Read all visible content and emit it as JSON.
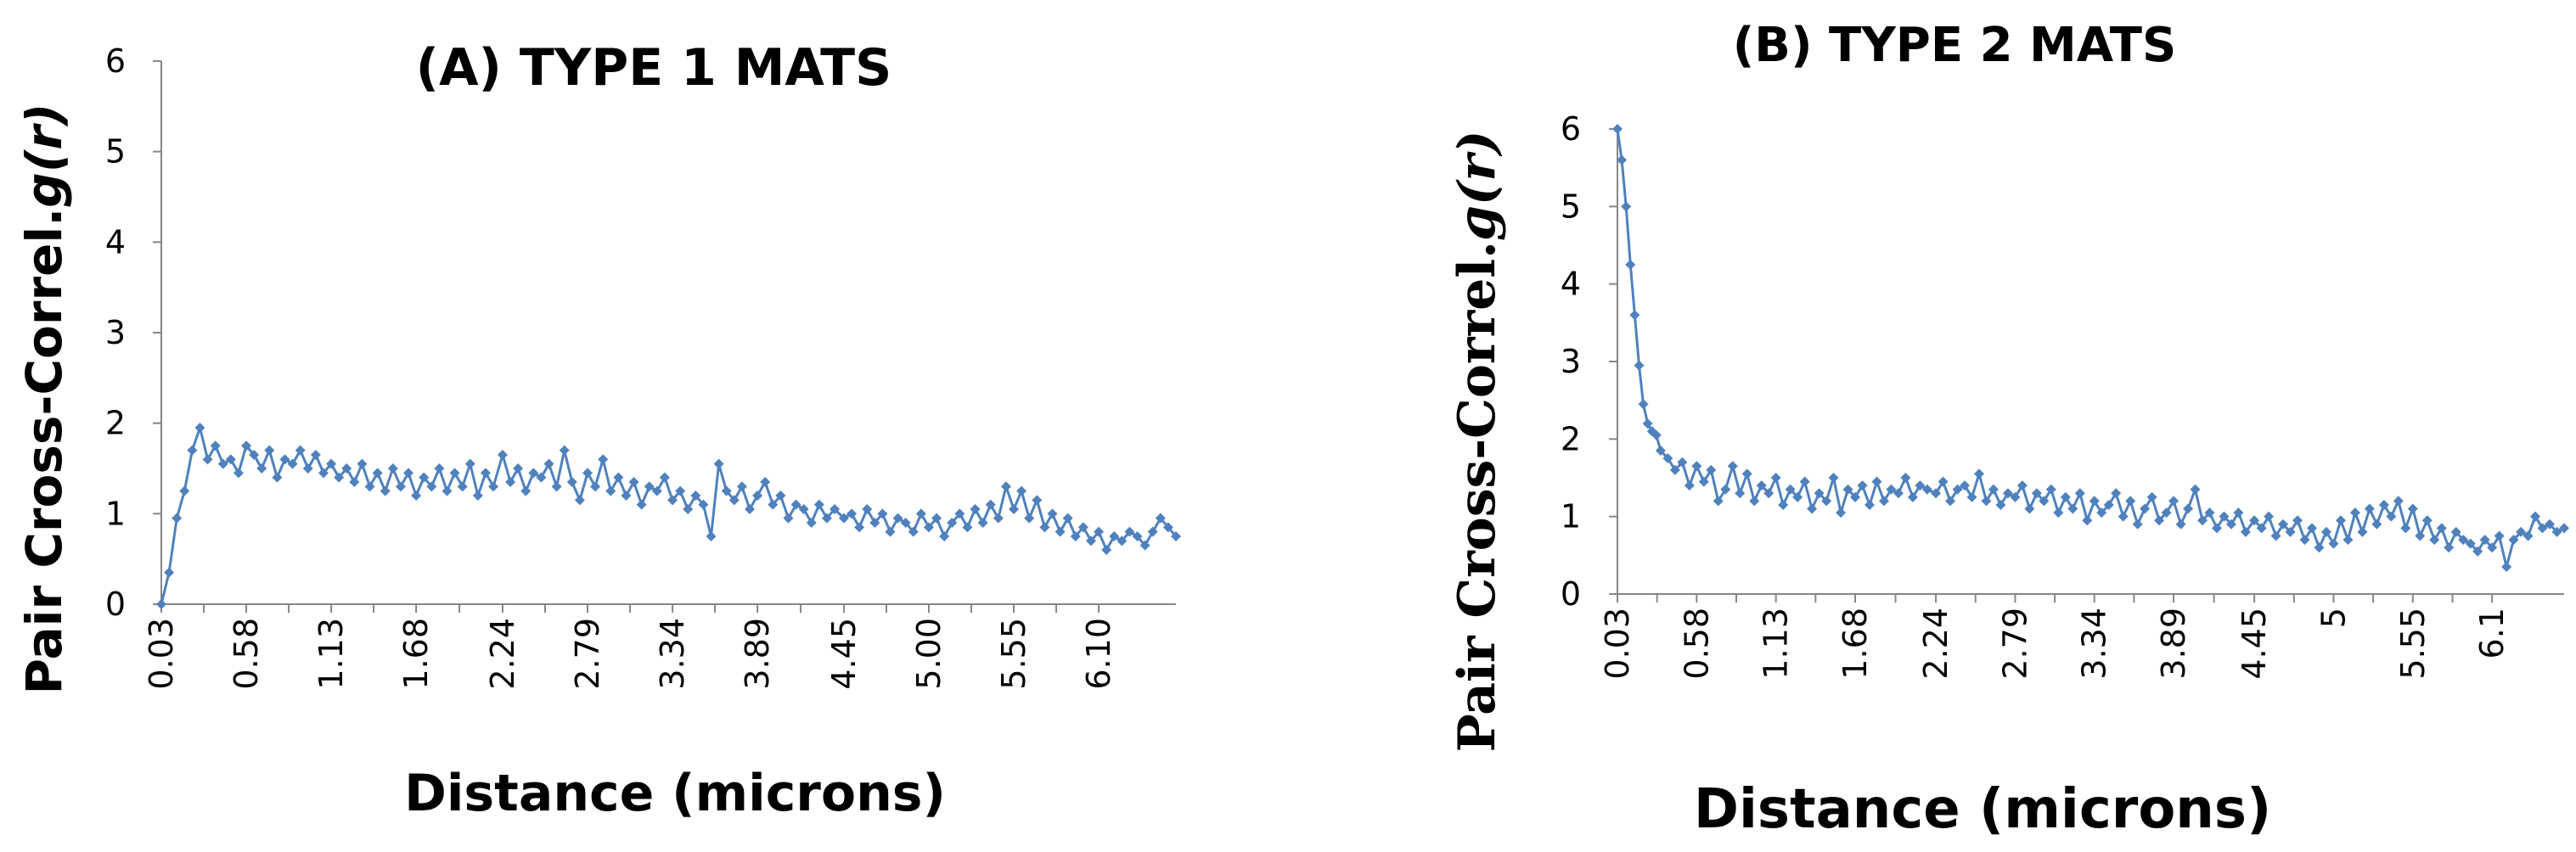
{
  "chart_data": [
    {
      "type": "line",
      "title": "(A)  TYPE 1 MATS",
      "xlabel": "Distance (microns)",
      "ylabel_prefix": "Pair Cross-Correl.",
      "ylabel_var": "g(r)",
      "ylim": [
        0,
        6
      ],
      "yticks": [
        "0",
        "1",
        "2",
        "3",
        "4",
        "5",
        "6"
      ],
      "x_tick_labels": [
        "0.03",
        "0.58",
        "1.13",
        "1.68",
        "2.24",
        "2.79",
        "3.34",
        "3.89",
        "4.45",
        "5.00",
        "5.55",
        "6.10"
      ],
      "x_tick_values": [
        0.03,
        0.58,
        1.13,
        1.68,
        2.24,
        2.79,
        3.34,
        3.89,
        4.45,
        5.0,
        5.55,
        6.1
      ],
      "xlim": [
        0.03,
        6.6
      ],
      "marker": "diamond",
      "grid": false,
      "series": [
        {
          "color": "#4f81bd",
          "x": [
            0.03,
            0.08,
            0.13,
            0.18,
            0.23,
            0.28,
            0.33,
            0.38,
            0.43,
            0.48,
            0.53,
            0.58,
            0.63,
            0.68,
            0.73,
            0.78,
            0.83,
            0.88,
            0.93,
            0.98,
            1.03,
            1.08,
            1.13,
            1.18,
            1.23,
            1.28,
            1.33,
            1.38,
            1.43,
            1.48,
            1.53,
            1.58,
            1.63,
            1.68,
            1.73,
            1.78,
            1.83,
            1.88,
            1.93,
            1.98,
            2.03,
            2.08,
            2.13,
            2.18,
            2.24,
            2.29,
            2.34,
            2.39,
            2.44,
            2.49,
            2.54,
            2.59,
            2.64,
            2.69,
            2.74,
            2.79,
            2.84,
            2.89,
            2.94,
            2.99,
            3.04,
            3.09,
            3.14,
            3.19,
            3.24,
            3.29,
            3.34,
            3.39,
            3.44,
            3.49,
            3.54,
            3.59,
            3.64,
            3.69,
            3.74,
            3.79,
            3.84,
            3.89,
            3.94,
            3.99,
            4.04,
            4.09,
            4.14,
            4.19,
            4.24,
            4.29,
            4.34,
            4.39,
            4.45,
            4.5,
            4.55,
            4.6,
            4.65,
            4.7,
            4.75,
            4.8,
            4.85,
            4.9,
            4.95,
            5.0,
            5.05,
            5.1,
            5.15,
            5.2,
            5.25,
            5.3,
            5.35,
            5.4,
            5.45,
            5.5,
            5.55,
            5.6,
            5.65,
            5.7,
            5.75,
            5.8,
            5.85,
            5.9,
            5.95,
            6.0,
            6.05,
            6.1,
            6.15,
            6.2,
            6.25,
            6.3,
            6.35,
            6.4,
            6.45,
            6.5,
            6.55,
            6.6
          ],
          "y": [
            0.0,
            0.35,
            0.95,
            1.25,
            1.7,
            1.95,
            1.6,
            1.75,
            1.55,
            1.6,
            1.45,
            1.75,
            1.65,
            1.5,
            1.7,
            1.4,
            1.6,
            1.55,
            1.7,
            1.5,
            1.65,
            1.45,
            1.55,
            1.4,
            1.5,
            1.35,
            1.55,
            1.3,
            1.45,
            1.25,
            1.5,
            1.3,
            1.45,
            1.2,
            1.4,
            1.3,
            1.5,
            1.25,
            1.45,
            1.3,
            1.55,
            1.2,
            1.45,
            1.3,
            1.65,
            1.35,
            1.5,
            1.25,
            1.45,
            1.4,
            1.55,
            1.3,
            1.7,
            1.35,
            1.15,
            1.45,
            1.3,
            1.6,
            1.25,
            1.4,
            1.2,
            1.35,
            1.1,
            1.3,
            1.25,
            1.4,
            1.15,
            1.25,
            1.05,
            1.2,
            1.1,
            0.75,
            1.55,
            1.25,
            1.15,
            1.3,
            1.05,
            1.2,
            1.35,
            1.1,
            1.2,
            0.95,
            1.1,
            1.05,
            0.9,
            1.1,
            0.95,
            1.05,
            0.95,
            1.0,
            0.85,
            1.05,
            0.9,
            1.0,
            0.8,
            0.95,
            0.9,
            0.8,
            1.0,
            0.85,
            0.95,
            0.75,
            0.9,
            1.0,
            0.85,
            1.05,
            0.9,
            1.1,
            0.95,
            1.3,
            1.05,
            1.25,
            0.95,
            1.15,
            0.85,
            1.0,
            0.8,
            0.95,
            0.75,
            0.85,
            0.7,
            0.8,
            0.6,
            0.75,
            0.7,
            0.8,
            0.75,
            0.65,
            0.8,
            0.95,
            0.85,
            0.75
          ]
        }
      ]
    },
    {
      "type": "line",
      "title": "(B)  TYPE 2 MATS",
      "xlabel": "Distance (microns)",
      "ylabel_prefix": "Pair Cross-Correl.",
      "ylabel_var": "g(r)",
      "ylim": [
        0,
        6
      ],
      "yticks": [
        "0",
        "1",
        "2",
        "3",
        "4",
        "5",
        "6"
      ],
      "x_tick_labels": [
        "0.03",
        "0.58",
        "1.13",
        "1.68",
        "2.24",
        "2.79",
        "3.34",
        "3.89",
        "4.45",
        "5",
        "5.55",
        "6.1"
      ],
      "x_tick_values": [
        0.03,
        0.58,
        1.13,
        1.68,
        2.24,
        2.79,
        3.34,
        3.89,
        4.45,
        5.0,
        5.55,
        6.1
      ],
      "xlim": [
        0.03,
        6.6
      ],
      "marker": "diamond",
      "grid": false,
      "series": [
        {
          "color": "#4f81bd",
          "x": [
            0.03,
            0.06,
            0.09,
            0.12,
            0.15,
            0.18,
            0.21,
            0.24,
            0.27,
            0.3,
            0.33,
            0.38,
            0.43,
            0.48,
            0.53,
            0.58,
            0.63,
            0.68,
            0.73,
            0.78,
            0.83,
            0.88,
            0.93,
            0.98,
            1.03,
            1.08,
            1.13,
            1.18,
            1.23,
            1.28,
            1.33,
            1.38,
            1.43,
            1.48,
            1.53,
            1.58,
            1.63,
            1.68,
            1.73,
            1.78,
            1.83,
            1.88,
            1.93,
            1.98,
            2.03,
            2.08,
            2.13,
            2.18,
            2.24,
            2.29,
            2.34,
            2.39,
            2.44,
            2.49,
            2.54,
            2.59,
            2.64,
            2.69,
            2.74,
            2.79,
            2.84,
            2.89,
            2.94,
            2.99,
            3.04,
            3.09,
            3.14,
            3.19,
            3.24,
            3.29,
            3.34,
            3.39,
            3.44,
            3.49,
            3.54,
            3.59,
            3.64,
            3.69,
            3.74,
            3.79,
            3.84,
            3.89,
            3.94,
            3.99,
            4.04,
            4.09,
            4.14,
            4.19,
            4.24,
            4.29,
            4.34,
            4.39,
            4.45,
            4.5,
            4.55,
            4.6,
            4.65,
            4.7,
            4.75,
            4.8,
            4.85,
            4.9,
            4.95,
            5.0,
            5.05,
            5.1,
            5.15,
            5.2,
            5.25,
            5.3,
            5.35,
            5.4,
            5.45,
            5.5,
            5.55,
            5.6,
            5.65,
            5.7,
            5.75,
            5.8,
            5.85,
            5.9,
            5.95,
            6.0,
            6.05,
            6.1,
            6.15,
            6.2,
            6.25,
            6.3,
            6.35,
            6.4,
            6.45,
            6.5,
            6.55,
            6.6
          ],
          "y": [
            6.0,
            5.6,
            5.0,
            4.25,
            3.6,
            2.95,
            2.45,
            2.2,
            2.1,
            2.05,
            1.85,
            1.75,
            1.6,
            1.7,
            1.4,
            1.65,
            1.45,
            1.6,
            1.2,
            1.35,
            1.65,
            1.3,
            1.55,
            1.2,
            1.4,
            1.3,
            1.5,
            1.15,
            1.35,
            1.25,
            1.45,
            1.1,
            1.3,
            1.2,
            1.5,
            1.05,
            1.35,
            1.25,
            1.4,
            1.15,
            1.45,
            1.2,
            1.35,
            1.3,
            1.5,
            1.25,
            1.4,
            1.35,
            1.3,
            1.45,
            1.2,
            1.35,
            1.4,
            1.25,
            1.55,
            1.2,
            1.35,
            1.15,
            1.3,
            1.25,
            1.4,
            1.1,
            1.3,
            1.2,
            1.35,
            1.05,
            1.25,
            1.1,
            1.3,
            0.95,
            1.2,
            1.05,
            1.15,
            1.3,
            1.0,
            1.2,
            0.9,
            1.1,
            1.25,
            0.95,
            1.05,
            1.2,
            0.9,
            1.1,
            1.35,
            0.95,
            1.05,
            0.85,
            1.0,
            0.9,
            1.05,
            0.8,
            0.95,
            0.85,
            1.0,
            0.75,
            0.9,
            0.8,
            0.95,
            0.7,
            0.85,
            0.6,
            0.8,
            0.65,
            0.95,
            0.7,
            1.05,
            0.8,
            1.1,
            0.9,
            1.15,
            1.0,
            1.2,
            0.85,
            1.1,
            0.75,
            0.95,
            0.7,
            0.85,
            0.6,
            0.8,
            0.7,
            0.65,
            0.55,
            0.7,
            0.6,
            0.75,
            0.35,
            0.7,
            0.8,
            0.75,
            1.0,
            0.85,
            0.9,
            0.8,
            0.85
          ]
        }
      ]
    }
  ]
}
